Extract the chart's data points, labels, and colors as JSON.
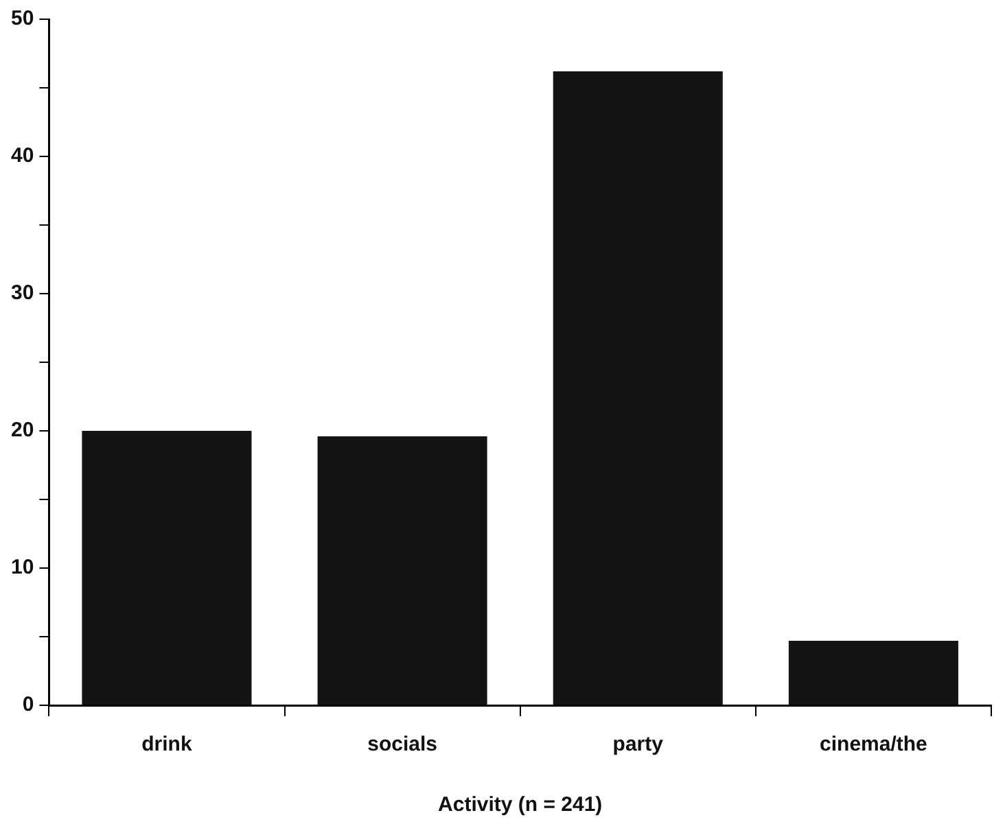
{
  "chart_data": {
    "type": "bar",
    "xlabel": "Activity (n = 241)",
    "categories": [
      "drink",
      "socials",
      "party",
      "cinema/the"
    ],
    "values": [
      20,
      19.6,
      46.2,
      4.7
    ],
    "color": "#141414",
    "ylim": [
      0,
      50
    ],
    "yticks": [
      0,
      {
        "value": 5,
        "label": null
      },
      10,
      {
        "value": 15,
        "label": null
      },
      20,
      {
        "value": 25,
        "label": null
      },
      30,
      {
        "value": 35,
        "label": null
      },
      40,
      {
        "value": 45,
        "label": null
      },
      50
    ],
    "grid": false,
    "legend": false
  }
}
